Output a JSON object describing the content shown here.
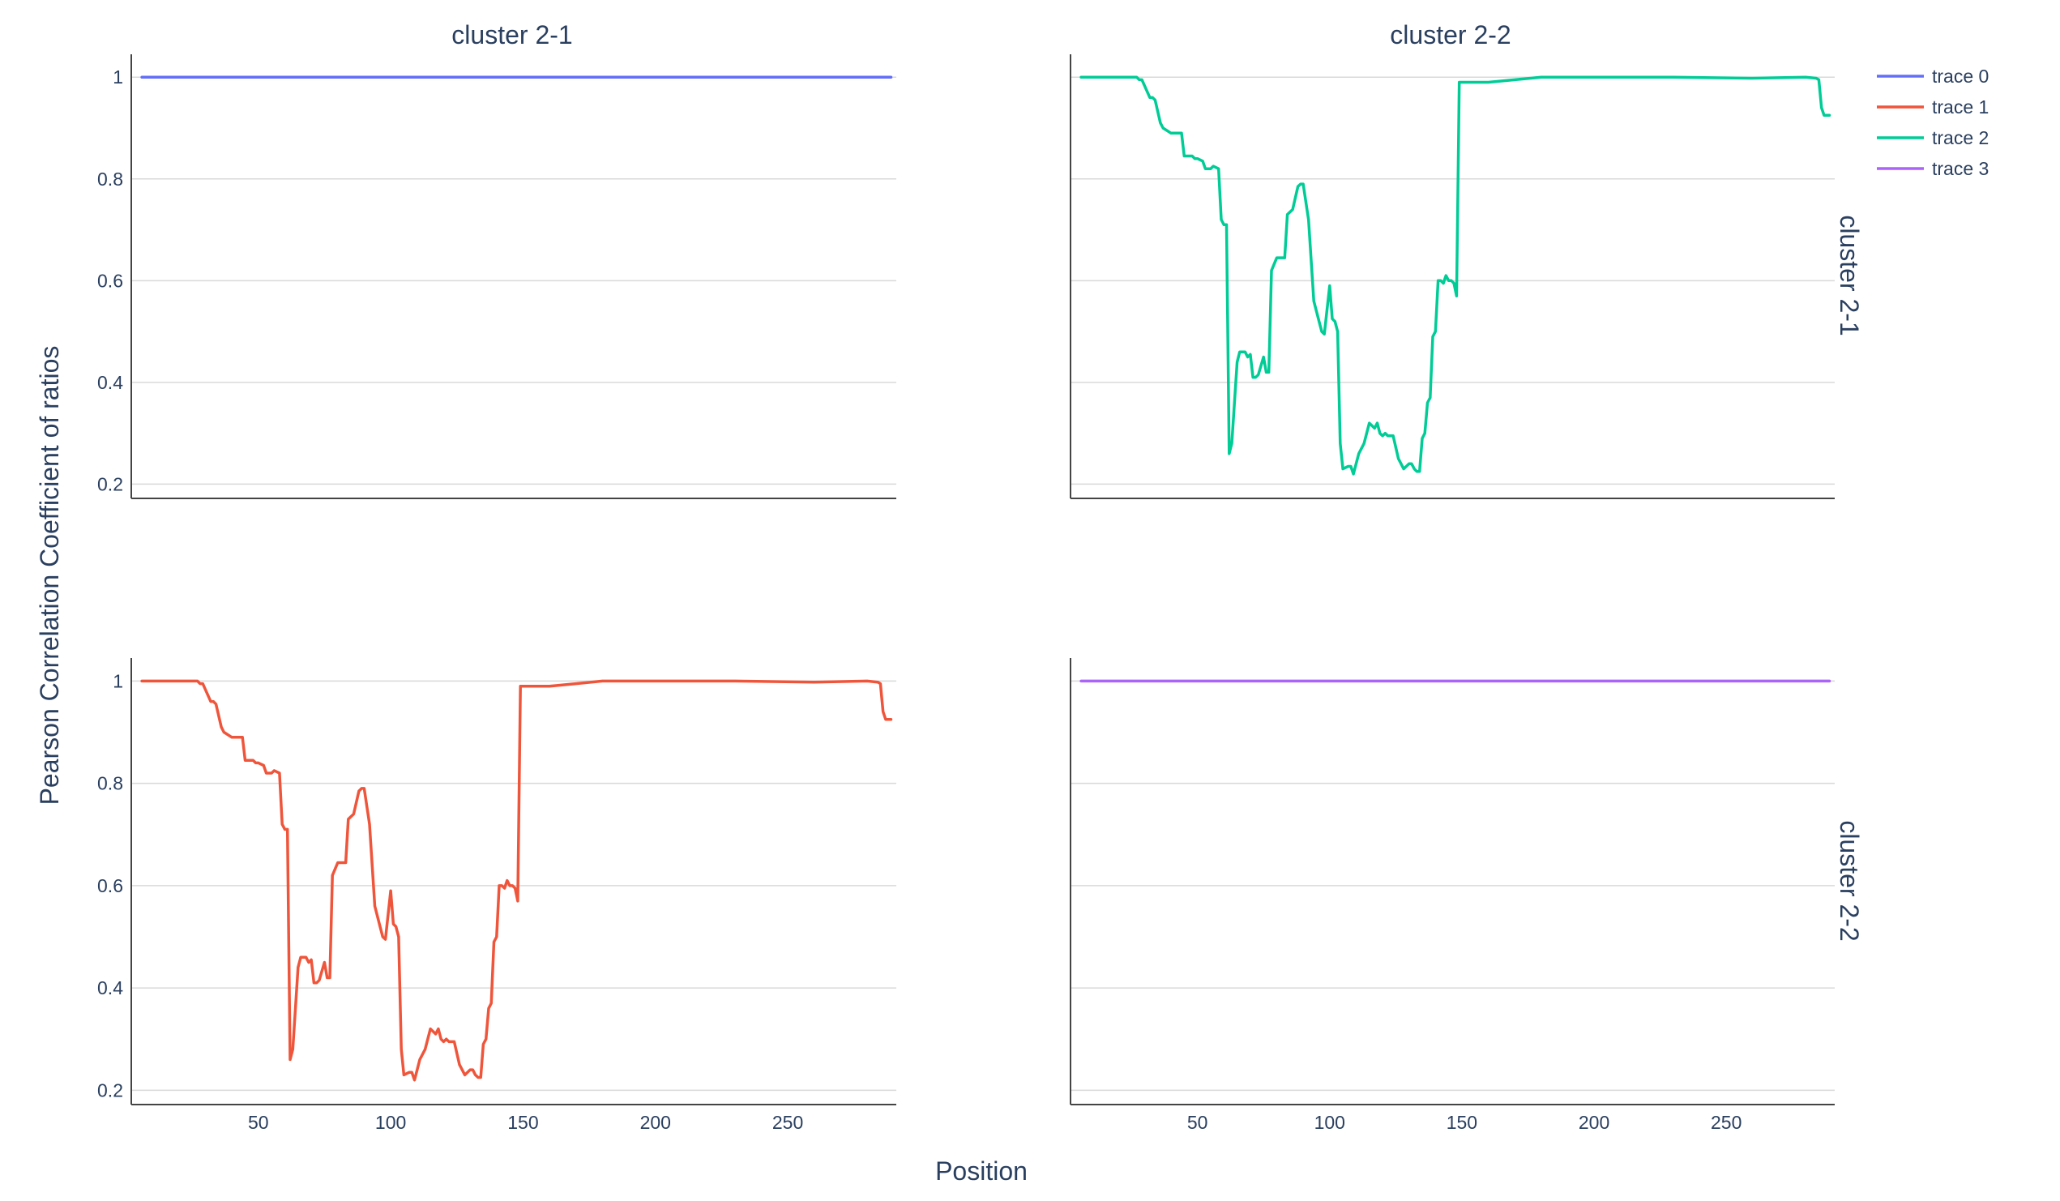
{
  "chart_data": {
    "type": "line",
    "layout": "2x2 facet grid",
    "column_titles": [
      "cluster 2-1",
      "cluster 2-2"
    ],
    "row_titles": [
      "cluster 2-1",
      "cluster 2-2"
    ],
    "xlabel": "Position",
    "ylabel": "Pearson Correlation Coefficient of ratios",
    "xlim": [
      2,
      291
    ],
    "ylim": [
      0.172,
      1.045
    ],
    "x_ticks": [
      50,
      100,
      150,
      200,
      250
    ],
    "y_ticks": [
      0.2,
      0.4,
      0.6,
      0.8,
      1
    ],
    "y_tick_labels": [
      "0.2",
      "0.4",
      "0.6",
      "0.8",
      "1"
    ],
    "grid": "horizontal",
    "legend_position": "top-right",
    "colors": {
      "trace0": "#636efa",
      "trace1": "#ef553b",
      "trace2": "#00cc96",
      "trace3": "#ab63fa",
      "text": "#2a3f5f",
      "grid": "#d9d9d9",
      "axis": "#444444"
    },
    "series": [
      {
        "name": "trace 0",
        "color": "#636efa",
        "row": 0,
        "col": 0,
        "x": [
          6,
          289
        ],
        "y": [
          1.0,
          1.0
        ]
      },
      {
        "name": "trace 1",
        "color": "#ef553b",
        "row": 1,
        "col": 0,
        "x": [
          6,
          27,
          28,
          29,
          32,
          33,
          34,
          36,
          37,
          40,
          41,
          42,
          44,
          45,
          47,
          48,
          49,
          50,
          52,
          53,
          55,
          56,
          58,
          59,
          60,
          61,
          62,
          63,
          65,
          66,
          68,
          69,
          70,
          71,
          72,
          73,
          75,
          76,
          77,
          78,
          80,
          81,
          82,
          83,
          84,
          86,
          88,
          89,
          90,
          92,
          94,
          96,
          97,
          98,
          100,
          101,
          102,
          103,
          104,
          105,
          107,
          108,
          109,
          110,
          111,
          113,
          115,
          117,
          118,
          119,
          120,
          121,
          122,
          124,
          126,
          127,
          128,
          130,
          131,
          132,
          133,
          134,
          135,
          136,
          137,
          138,
          139,
          140,
          141,
          142,
          143,
          144,
          145,
          146,
          147,
          148,
          149,
          150,
          151,
          152,
          153,
          155,
          160,
          170,
          180,
          190,
          230,
          260,
          280,
          284,
          285,
          286,
          287,
          289
        ],
        "y": [
          1.0,
          1.0,
          0.995,
          0.995,
          0.96,
          0.96,
          0.955,
          0.91,
          0.9,
          0.89,
          0.89,
          0.89,
          0.89,
          0.845,
          0.845,
          0.845,
          0.84,
          0.84,
          0.835,
          0.82,
          0.82,
          0.825,
          0.82,
          0.72,
          0.71,
          0.71,
          0.26,
          0.28,
          0.44,
          0.46,
          0.46,
          0.45,
          0.455,
          0.41,
          0.41,
          0.415,
          0.45,
          0.42,
          0.42,
          0.62,
          0.645,
          0.645,
          0.645,
          0.645,
          0.73,
          0.74,
          0.785,
          0.79,
          0.79,
          0.72,
          0.56,
          0.52,
          0.5,
          0.495,
          0.59,
          0.525,
          0.52,
          0.5,
          0.28,
          0.23,
          0.235,
          0.235,
          0.22,
          0.24,
          0.26,
          0.28,
          0.32,
          0.31,
          0.32,
          0.3,
          0.295,
          0.3,
          0.295,
          0.295,
          0.25,
          0.24,
          0.23,
          0.24,
          0.24,
          0.23,
          0.225,
          0.225,
          0.29,
          0.3,
          0.36,
          0.37,
          0.49,
          0.5,
          0.6,
          0.6,
          0.595,
          0.61,
          0.6,
          0.6,
          0.595,
          0.57,
          0.99,
          0.99,
          0.99,
          0.99,
          0.99,
          0.99,
          0.99,
          0.995,
          1.0,
          1.0,
          1.0,
          0.998,
          1.0,
          0.998,
          0.995,
          0.94,
          0.925,
          0.925
        ]
      },
      {
        "name": "trace 2",
        "color": "#00cc96",
        "row": 0,
        "col": 1,
        "x": [
          6,
          27,
          28,
          29,
          32,
          33,
          34,
          36,
          37,
          40,
          41,
          42,
          44,
          45,
          47,
          48,
          49,
          50,
          52,
          53,
          55,
          56,
          58,
          59,
          60,
          61,
          62,
          63,
          65,
          66,
          68,
          69,
          70,
          71,
          72,
          73,
          75,
          76,
          77,
          78,
          80,
          81,
          82,
          83,
          84,
          86,
          88,
          89,
          90,
          92,
          94,
          96,
          97,
          98,
          100,
          101,
          102,
          103,
          104,
          105,
          107,
          108,
          109,
          110,
          111,
          113,
          115,
          117,
          118,
          119,
          120,
          121,
          122,
          124,
          126,
          127,
          128,
          130,
          131,
          132,
          133,
          134,
          135,
          136,
          137,
          138,
          139,
          140,
          141,
          142,
          143,
          144,
          145,
          146,
          147,
          148,
          149,
          150,
          151,
          152,
          153,
          155,
          160,
          170,
          180,
          190,
          230,
          260,
          280,
          284,
          285,
          286,
          287,
          289
        ],
        "y": [
          1.0,
          1.0,
          0.995,
          0.995,
          0.96,
          0.96,
          0.955,
          0.91,
          0.9,
          0.89,
          0.89,
          0.89,
          0.89,
          0.845,
          0.845,
          0.845,
          0.84,
          0.84,
          0.835,
          0.82,
          0.82,
          0.825,
          0.82,
          0.72,
          0.71,
          0.71,
          0.26,
          0.28,
          0.44,
          0.46,
          0.46,
          0.45,
          0.455,
          0.41,
          0.41,
          0.415,
          0.45,
          0.42,
          0.42,
          0.62,
          0.645,
          0.645,
          0.645,
          0.645,
          0.73,
          0.74,
          0.785,
          0.79,
          0.79,
          0.72,
          0.56,
          0.52,
          0.5,
          0.495,
          0.59,
          0.525,
          0.52,
          0.5,
          0.28,
          0.23,
          0.235,
          0.235,
          0.22,
          0.24,
          0.26,
          0.28,
          0.32,
          0.31,
          0.32,
          0.3,
          0.295,
          0.3,
          0.295,
          0.295,
          0.25,
          0.24,
          0.23,
          0.24,
          0.24,
          0.23,
          0.225,
          0.225,
          0.29,
          0.3,
          0.36,
          0.37,
          0.49,
          0.5,
          0.6,
          0.6,
          0.595,
          0.61,
          0.6,
          0.6,
          0.595,
          0.57,
          0.99,
          0.99,
          0.99,
          0.99,
          0.99,
          0.99,
          0.99,
          0.995,
          1.0,
          1.0,
          1.0,
          0.998,
          1.0,
          0.998,
          0.995,
          0.94,
          0.925,
          0.925
        ]
      },
      {
        "name": "trace 3",
        "color": "#ab63fa",
        "row": 1,
        "col": 1,
        "x": [
          6,
          289
        ],
        "y": [
          1.0,
          1.0
        ]
      }
    ]
  }
}
